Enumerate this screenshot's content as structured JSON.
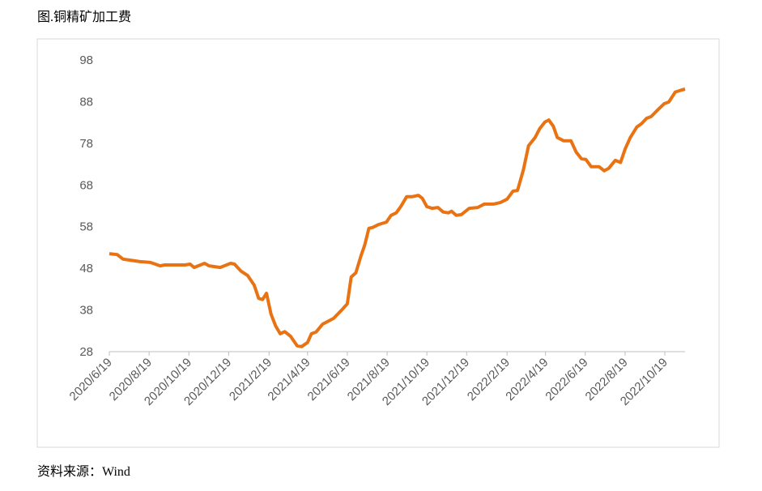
{
  "title": "图.铜精矿加工费",
  "source": "资料来源：Wind",
  "chart_data": {
    "type": "line",
    "color": "#e97312",
    "xlim": [
      "2020/6/19",
      "2022/11/19"
    ],
    "xticks": [
      "2020/6/19",
      "2020/8/19",
      "2020/10/19",
      "2020/12/19",
      "2021/2/19",
      "2021/4/19",
      "2021/6/19",
      "2021/8/19",
      "2021/10/19",
      "2021/12/19",
      "2022/2/19",
      "2022/4/19",
      "2022/6/19",
      "2022/8/19",
      "2022/10/19"
    ],
    "ylim": [
      28,
      98
    ],
    "yticks": [
      28,
      38,
      48,
      58,
      68,
      78,
      88,
      98
    ],
    "x": [
      "2020/6/19",
      "2020/7/1",
      "2020/7/10",
      "2020/7/19",
      "2020/8/5",
      "2020/8/21",
      "2020/9/5",
      "2020/9/12",
      "2020/10/13",
      "2020/10/21",
      "2020/10/27",
      "2020/11/12",
      "2020/11/19",
      "2020/12/6",
      "2020/12/22",
      "2020/12/28",
      "2021/1/7",
      "2021/1/17",
      "2021/1/27",
      "2021/2/3",
      "2021/2/9",
      "2021/2/15",
      "2021/2/22",
      "2021/3/1",
      "2021/3/8",
      "2021/3/15",
      "2021/3/24",
      "2021/4/3",
      "2021/4/10",
      "2021/4/19",
      "2021/4/25",
      "2021/5/2",
      "2021/5/12",
      "2021/5/22",
      "2021/5/29",
      "2021/6/11",
      "2021/6/19",
      "2021/6/25",
      "2021/7/2",
      "2021/7/10",
      "2021/7/16",
      "2021/7/22",
      "2021/7/28",
      "2021/8/6",
      "2021/8/18",
      "2021/8/25",
      "2021/9/2",
      "2021/9/9",
      "2021/9/18",
      "2021/9/27",
      "2021/10/6",
      "2021/10/12",
      "2021/10/19",
      "2021/10/27",
      "2021/11/5",
      "2021/11/13",
      "2021/11/21",
      "2021/11/26",
      "2021/12/3",
      "2021/12/11",
      "2021/12/23",
      "2022/1/5",
      "2022/1/15",
      "2022/1/29",
      "2022/2/9",
      "2022/2/19",
      "2022/2/28",
      "2022/3/7",
      "2022/3/16",
      "2022/3/24",
      "2022/4/3",
      "2022/4/10",
      "2022/4/18",
      "2022/4/24",
      "2022/5/1",
      "2022/5/7",
      "2022/5/17",
      "2022/5/28",
      "2022/6/5",
      "2022/6/13",
      "2022/6/20",
      "2022/6/28",
      "2022/7/10",
      "2022/7/18",
      "2022/7/25",
      "2022/8/4",
      "2022/8/12",
      "2022/8/19",
      "2022/8/27",
      "2022/9/6",
      "2022/9/13",
      "2022/9/21",
      "2022/9/28",
      "2022/10/8",
      "2022/10/18",
      "2022/10/25",
      "2022/11/4",
      "2022/11/14",
      "2022/11/19"
    ],
    "values": [
      51.5,
      51.3,
      50.2,
      50,
      49.6,
      49.4,
      48.6,
      48.8,
      48.8,
      49,
      48.2,
      49.2,
      48.6,
      48.2,
      49.2,
      49,
      47.3,
      46.3,
      44,
      40.8,
      40.5,
      42,
      37,
      34.2,
      32.3,
      32.8,
      31.7,
      29.4,
      29.2,
      30.2,
      32.3,
      32.7,
      34.6,
      35.4,
      36,
      38.1,
      39.5,
      45.9,
      46.9,
      51,
      53.7,
      57.6,
      57.8,
      58.5,
      59.1,
      60.7,
      61.3,
      62.8,
      65.2,
      65.2,
      65.5,
      64.8,
      62.8,
      62.4,
      62.6,
      61.5,
      61.3,
      61.7,
      60.7,
      60.9,
      62.4,
      62.6,
      63.4,
      63.4,
      63.8,
      64.6,
      66.5,
      66.7,
      71.6,
      77.4,
      79.4,
      81.5,
      83.1,
      83.6,
      82.1,
      79.4,
      78.6,
      78.6,
      75.9,
      74.3,
      74.1,
      72.4,
      72.4,
      71.4,
      72,
      73.9,
      73.4,
      76.6,
      79.4,
      81.9,
      82.7,
      84,
      84.4,
      86,
      87.5,
      87.9,
      90.3,
      90.8,
      91
    ]
  }
}
